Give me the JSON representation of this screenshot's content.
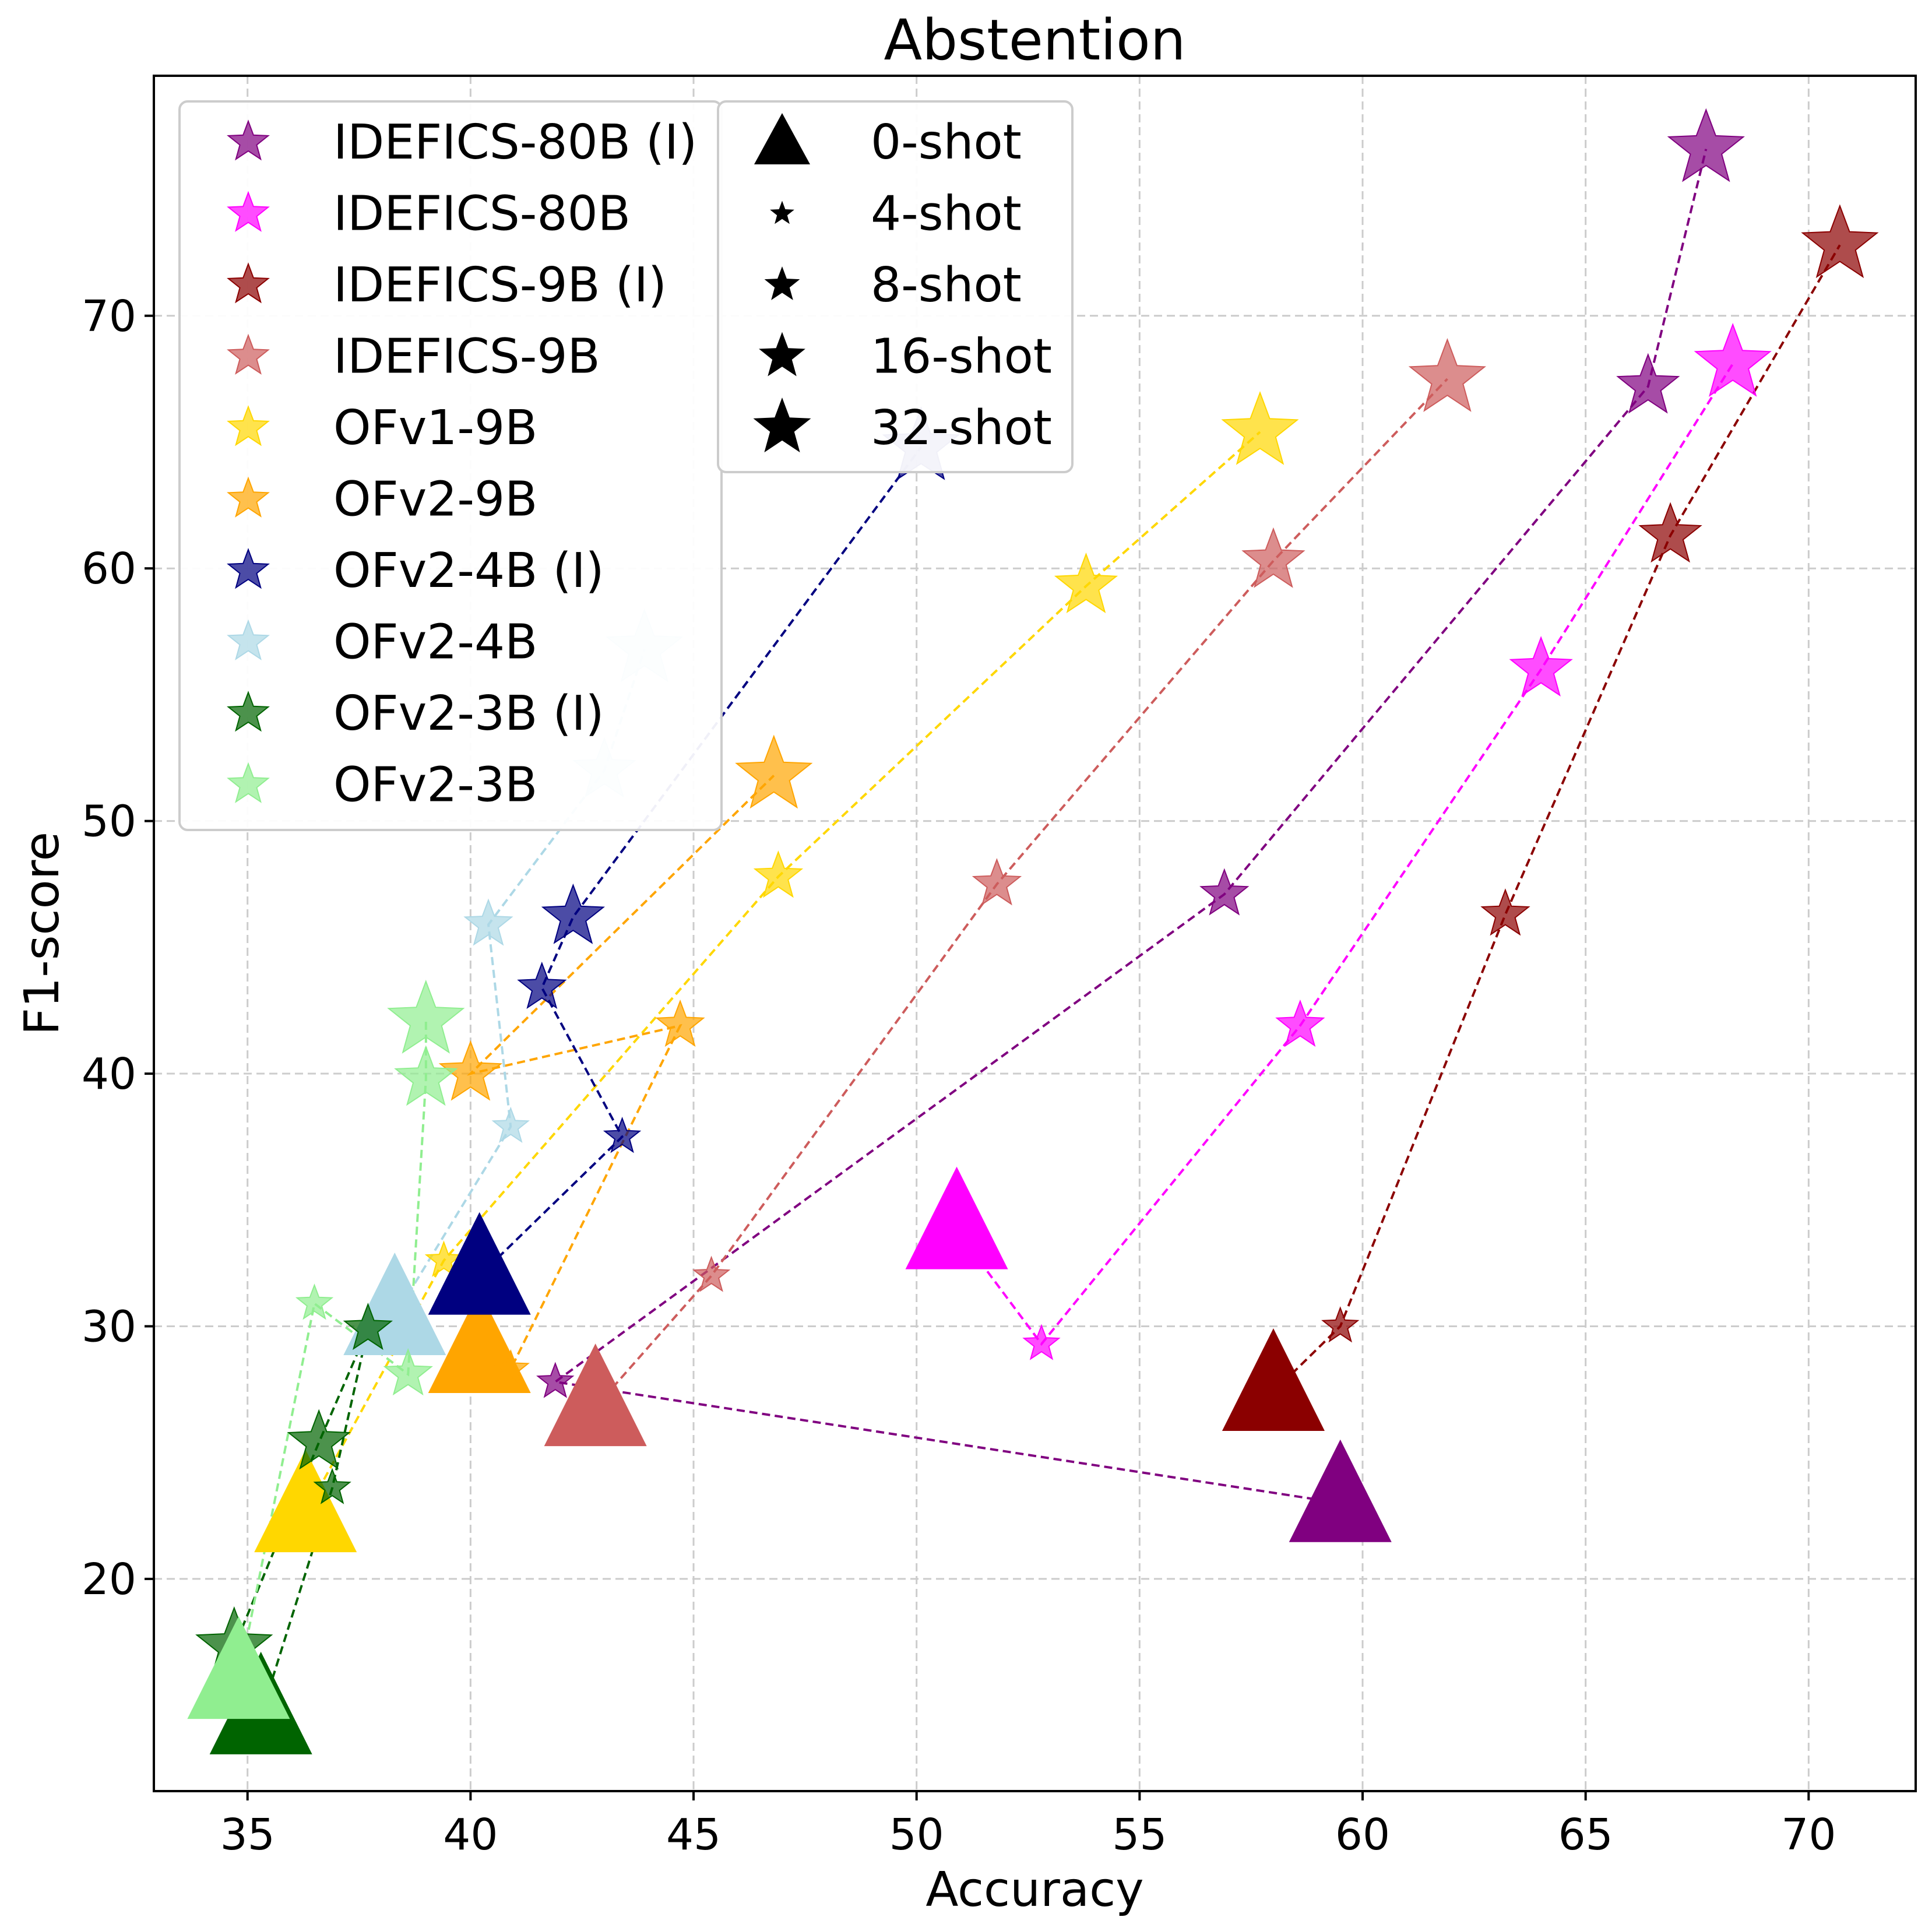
{
  "chart_data": {
    "type": "scatter",
    "title": "Abstention",
    "xlabel": "Accuracy",
    "ylabel": "F1-score",
    "xlim": [
      32.9,
      72.4
    ],
    "ylim": [
      11.6,
      79.5
    ],
    "xticks": [
      35,
      40,
      45,
      50,
      55,
      60,
      65,
      70
    ],
    "yticks": [
      20,
      30,
      40,
      50,
      60,
      70
    ],
    "grid": true,
    "shots": [
      "0-shot",
      "4-shot",
      "8-shot",
      "16-shot",
      "32-shot"
    ],
    "legend_models_position": "top-left",
    "legend_shots_position": "top-center",
    "series": [
      {
        "name": "IDEFICS-80B (I)",
        "color": "#800080",
        "points": [
          [
            59.5,
            23.0
          ],
          [
            41.9,
            27.8
          ],
          [
            56.9,
            47.1
          ],
          [
            66.4,
            67.2
          ],
          [
            67.7,
            76.6
          ]
        ]
      },
      {
        "name": "IDEFICS-80B",
        "color": "#ff00ff",
        "points": [
          [
            50.9,
            33.8
          ],
          [
            52.8,
            29.3
          ],
          [
            58.6,
            41.9
          ],
          [
            64.0,
            56.0
          ],
          [
            68.3,
            68.1
          ]
        ]
      },
      {
        "name": "IDEFICS-9B (I)",
        "color": "#8b0000",
        "points": [
          [
            58.0,
            27.4
          ],
          [
            59.5,
            30.0
          ],
          [
            63.2,
            46.3
          ],
          [
            66.9,
            61.3
          ],
          [
            70.7,
            72.8
          ]
        ]
      },
      {
        "name": "IDEFICS-9B",
        "color": "#cd5c5c",
        "points": [
          [
            42.8,
            26.8
          ],
          [
            45.4,
            32.0
          ],
          [
            51.8,
            47.5
          ],
          [
            58.0,
            60.3
          ],
          [
            61.9,
            67.5
          ]
        ]
      },
      {
        "name": "OFv1-9B",
        "color": "#ffd700",
        "points": [
          [
            36.3,
            22.6
          ],
          [
            39.4,
            32.6
          ],
          [
            46.9,
            47.8
          ],
          [
            53.8,
            59.3
          ],
          [
            57.7,
            65.4
          ]
        ]
      },
      {
        "name": "OFv2-9B",
        "color": "#ffa500",
        "points": [
          [
            40.2,
            28.9
          ],
          [
            40.9,
            28.3
          ],
          [
            44.7,
            41.9
          ],
          [
            40.0,
            40.0
          ],
          [
            46.8,
            51.8
          ]
        ]
      },
      {
        "name": "OFv2-4B (I)",
        "color": "#000080",
        "points": [
          [
            40.2,
            32.0
          ],
          [
            43.4,
            37.5
          ],
          [
            41.6,
            43.4
          ],
          [
            42.3,
            46.2
          ],
          [
            50.1,
            64.8
          ]
        ]
      },
      {
        "name": "OFv2-4B",
        "color": "#add8e6",
        "points": [
          [
            38.3,
            30.4
          ],
          [
            40.9,
            37.9
          ],
          [
            40.4,
            45.9
          ],
          [
            43.0,
            52.0
          ],
          [
            43.9,
            56.8
          ]
        ]
      },
      {
        "name": "OFv2-3B (I)",
        "color": "#006400",
        "points": [
          [
            35.3,
            14.6
          ],
          [
            36.9,
            23.6
          ],
          [
            37.7,
            29.9
          ],
          [
            36.6,
            25.4
          ],
          [
            34.7,
            17.3
          ]
        ]
      },
      {
        "name": "OFv2-3B",
        "color": "#90ee90",
        "points": [
          [
            34.8,
            16.0
          ],
          [
            36.5,
            30.9
          ],
          [
            38.6,
            28.1
          ],
          [
            39.0,
            39.8
          ],
          [
            39.0,
            42.1
          ]
        ]
      }
    ]
  }
}
